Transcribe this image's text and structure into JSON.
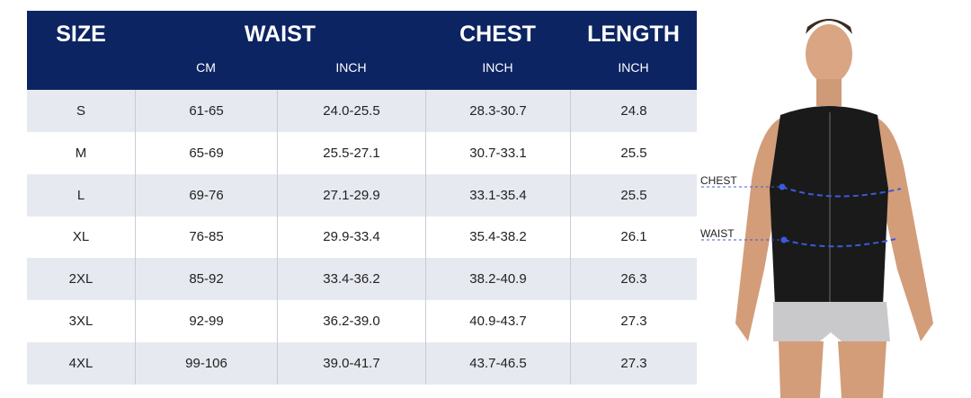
{
  "table": {
    "header": [
      "SIZE",
      "WAIST",
      "CHEST",
      "LENGTH"
    ],
    "subheader": [
      "CM",
      "INCH",
      "INCH",
      "INCH"
    ],
    "rows": [
      [
        "S",
        "61-65",
        "24.0-25.5",
        "28.3-30.7",
        "24.8"
      ],
      [
        "M",
        "65-69",
        "25.5-27.1",
        "30.7-33.1",
        "25.5"
      ],
      [
        "L",
        "69-76",
        "27.1-29.9",
        "33.1-35.4",
        "25.5"
      ],
      [
        "XL",
        "76-85",
        "29.9-33.4",
        "35.4-38.2",
        "26.1"
      ],
      [
        "2XL",
        "85-92",
        "33.4-36.2",
        "38.2-40.9",
        "26.3"
      ],
      [
        "3XL",
        "92-99",
        "36.2-39.0",
        "40.9-43.7",
        "27.3"
      ],
      [
        "4XL",
        "99-106",
        "39.0-41.7",
        "43.7-46.5",
        "27.3"
      ]
    ]
  },
  "figure": {
    "labels": [
      "CHEST",
      "WAIST"
    ]
  }
}
